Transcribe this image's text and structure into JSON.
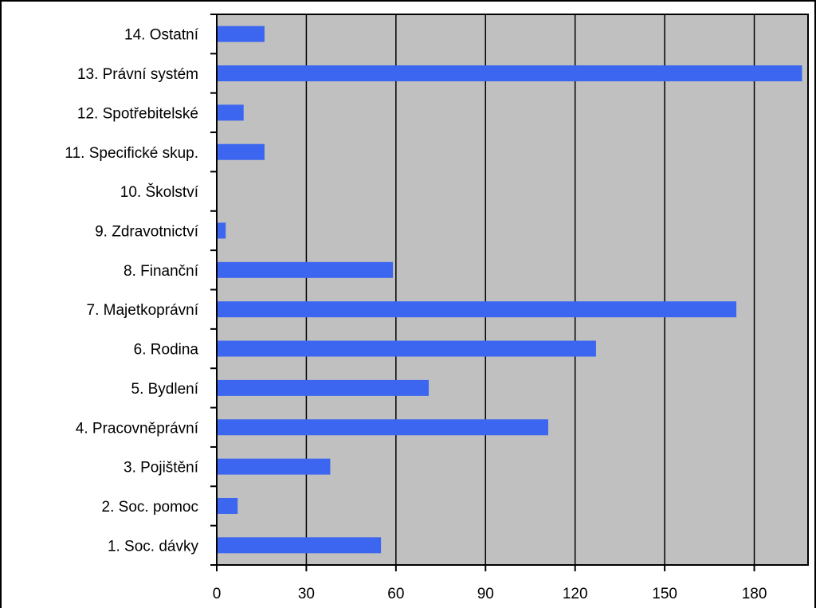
{
  "chart_data": {
    "type": "bar",
    "orientation": "horizontal",
    "title": "",
    "xlabel": "",
    "ylabel": "",
    "categories": [
      "1. Soc. dávky",
      "2. Soc. pomoc",
      "3. Pojištění",
      "4. Pracovněprávní",
      "5. Bydlení",
      "6. Rodina",
      "7. Majetkoprávní",
      "8. Finanční",
      "9. Zdravotnictví",
      "10. Školství",
      "11. Specifické skup.",
      "12. Spotřebitelské",
      "13. Právní systém",
      "14. Ostatní"
    ],
    "values": [
      55,
      7,
      38,
      111,
      71,
      127,
      174,
      59,
      3,
      0,
      16,
      9,
      196,
      16
    ],
    "xlim": [
      0,
      198
    ],
    "xticks": [
      0,
      30,
      60,
      90,
      120,
      150,
      180
    ],
    "grid": true,
    "legend": "none",
    "colors": {
      "bar": "#3D66F0",
      "plot_background": "#C0C0C0",
      "gridline": "#000000",
      "axis": "#000000",
      "frame": "#000000",
      "page_background": "#FFFFFF"
    }
  }
}
